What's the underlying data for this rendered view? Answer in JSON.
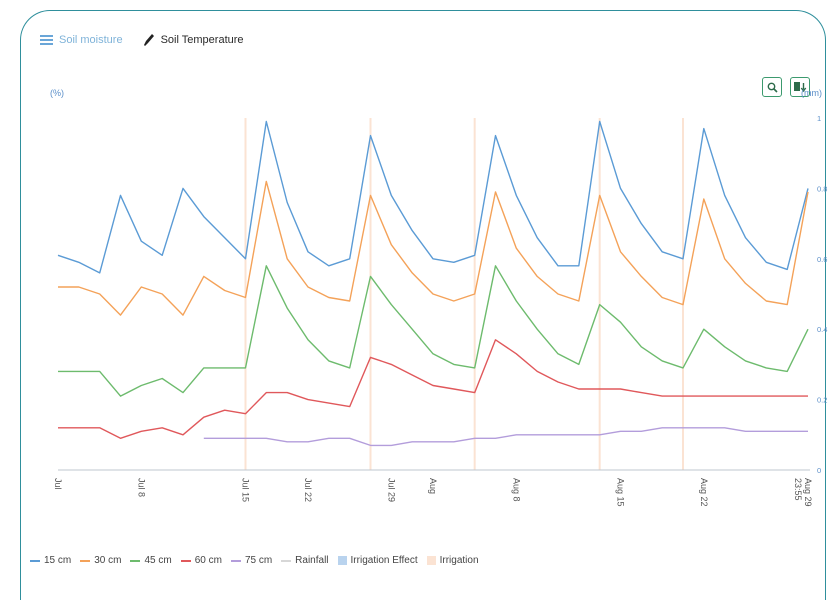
{
  "tabs": [
    {
      "label": "Soil moisture",
      "icon": "hamburger-icon",
      "active": true
    },
    {
      "label": "Soil Temperature",
      "icon": "thermometer-icon",
      "active": false
    }
  ],
  "toolbar": {
    "zoom_icon": "zoom-icon",
    "export_icon": "export-icon"
  },
  "colors": {
    "15cm": "#5b9bd5",
    "30cm": "#f4a259",
    "45cm": "#6dbb6d",
    "60cm": "#e0585b",
    "75cm": "#b39ddb",
    "rainfall": "#d7d7d7",
    "irrigation_effect": "#b9d3ee",
    "irrigation": "#fbe3d3",
    "frame": "#2f8f9c"
  },
  "chart_data": {
    "type": "line",
    "left_axis_unit": "(%)",
    "right_axis_unit": "(mm)",
    "right_ticks": [
      "0",
      "0.2",
      "0.4",
      "0.6",
      "0.8",
      "1"
    ],
    "x_ticks": [
      "Jul",
      "Jul 8",
      "Jul 15",
      "Jul 22",
      "Jul 29",
      "Aug",
      "Aug 8",
      "Aug 15",
      "Aug 22",
      "Aug 29\n23:55"
    ],
    "x": [
      "Jul 1",
      "Jul 3",
      "Jul 5",
      "Jul 6",
      "Jul 8",
      "Jul 10",
      "Jul 11",
      "Jul 12",
      "Jul 14",
      "Jul 15",
      "Jul 17",
      "Jul 20",
      "Jul 22",
      "Jul 24",
      "Jul 26",
      "Jul 27",
      "Jul 28",
      "Jul 30",
      "Aug 1",
      "Aug 3",
      "Aug 5",
      "Aug 6",
      "Aug 7",
      "Aug 9",
      "Aug 11",
      "Aug 13",
      "Aug 14",
      "Aug 15",
      "Aug 17",
      "Aug 19",
      "Aug 21",
      "Aug 22",
      "Aug 24",
      "Aug 26",
      "Aug 28",
      "Aug 29",
      "Aug 30"
    ],
    "series": [
      {
        "name": "15 cm",
        "values": [
          0.61,
          0.59,
          0.56,
          0.78,
          0.65,
          0.61,
          0.8,
          0.72,
          0.66,
          0.6,
          0.99,
          0.76,
          0.62,
          0.58,
          0.6,
          0.95,
          0.78,
          0.68,
          0.6,
          0.59,
          0.61,
          0.95,
          0.78,
          0.66,
          0.58,
          0.58,
          0.99,
          0.8,
          0.7,
          0.62,
          0.6,
          0.97,
          0.78,
          0.66,
          0.59,
          0.57,
          0.8
        ]
      },
      {
        "name": "30 cm",
        "values": [
          0.52,
          0.52,
          0.5,
          0.44,
          0.52,
          0.5,
          0.44,
          0.55,
          0.51,
          0.49,
          0.82,
          0.6,
          0.52,
          0.49,
          0.48,
          0.78,
          0.64,
          0.56,
          0.5,
          0.48,
          0.5,
          0.79,
          0.63,
          0.55,
          0.5,
          0.48,
          0.78,
          0.62,
          0.55,
          0.49,
          0.47,
          0.77,
          0.6,
          0.53,
          0.48,
          0.47,
          0.79
        ]
      },
      {
        "name": "45 cm",
        "values": [
          0.28,
          0.28,
          0.28,
          0.21,
          0.24,
          0.26,
          0.22,
          0.29,
          0.29,
          0.29,
          0.58,
          0.46,
          0.37,
          0.31,
          0.29,
          0.55,
          0.47,
          0.4,
          0.33,
          0.3,
          0.29,
          0.58,
          0.48,
          0.4,
          0.33,
          0.3,
          0.47,
          0.42,
          0.35,
          0.31,
          0.29,
          0.4,
          0.35,
          0.31,
          0.29,
          0.28,
          0.4
        ]
      },
      {
        "name": "60 cm",
        "values": [
          0.12,
          0.12,
          0.12,
          0.09,
          0.11,
          0.12,
          0.1,
          0.15,
          0.17,
          0.16,
          0.22,
          0.22,
          0.2,
          0.19,
          0.18,
          0.32,
          0.3,
          0.27,
          0.24,
          0.23,
          0.22,
          0.37,
          0.33,
          0.28,
          0.25,
          0.23,
          0.23,
          0.23,
          0.22,
          0.21,
          0.21,
          0.21,
          0.21,
          0.21,
          0.21,
          0.21,
          0.21
        ]
      },
      {
        "name": "75 cm",
        "values": [
          null,
          null,
          null,
          null,
          null,
          null,
          null,
          0.09,
          0.09,
          0.09,
          0.09,
          0.08,
          0.08,
          0.09,
          0.09,
          0.07,
          0.07,
          0.08,
          0.08,
          0.08,
          0.09,
          0.09,
          0.1,
          0.1,
          0.1,
          0.1,
          0.1,
          0.11,
          0.11,
          0.12,
          0.12,
          0.12,
          0.12,
          0.11,
          0.11,
          0.11,
          0.11
        ]
      }
    ],
    "legend": [
      "15 cm",
      "30 cm",
      "45 cm",
      "60 cm",
      "75 cm",
      "Rainfall",
      "Irrigation Effect",
      "Irrigation"
    ],
    "legend_placement": "bottom",
    "grid": false
  }
}
